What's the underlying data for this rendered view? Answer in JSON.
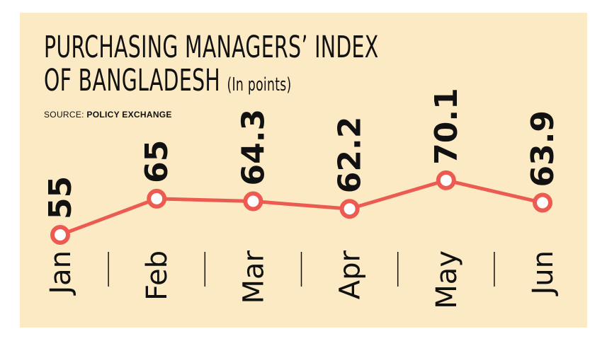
{
  "header": {
    "title_line1": "PURCHASING MANAGERS’ INDEX",
    "title_line2": "OF BANGLADESH",
    "unit": "(In points)",
    "source_label": "SOURCE:",
    "source_name": "POLICY EXCHANGE"
  },
  "chart_data": {
    "type": "line",
    "title": "PURCHASING MANAGERS’ INDEX OF BANGLADESH",
    "unit": "(In points)",
    "source": "POLICY EXCHANGE",
    "categories": [
      "Jan",
      "Feb",
      "Mar",
      "Apr",
      "May",
      "Jun"
    ],
    "values": [
      55,
      65,
      64.3,
      62.2,
      70.1,
      63.9
    ],
    "value_labels": [
      "55",
      "65",
      "64.3",
      "62.2",
      "70.1",
      "63.9"
    ],
    "ylim": [
      50,
      75
    ],
    "grid": false,
    "legend": "none",
    "line_color": "#ec5b52",
    "marker_fill": "#ffffff",
    "background_color": "#fbeac3"
  }
}
